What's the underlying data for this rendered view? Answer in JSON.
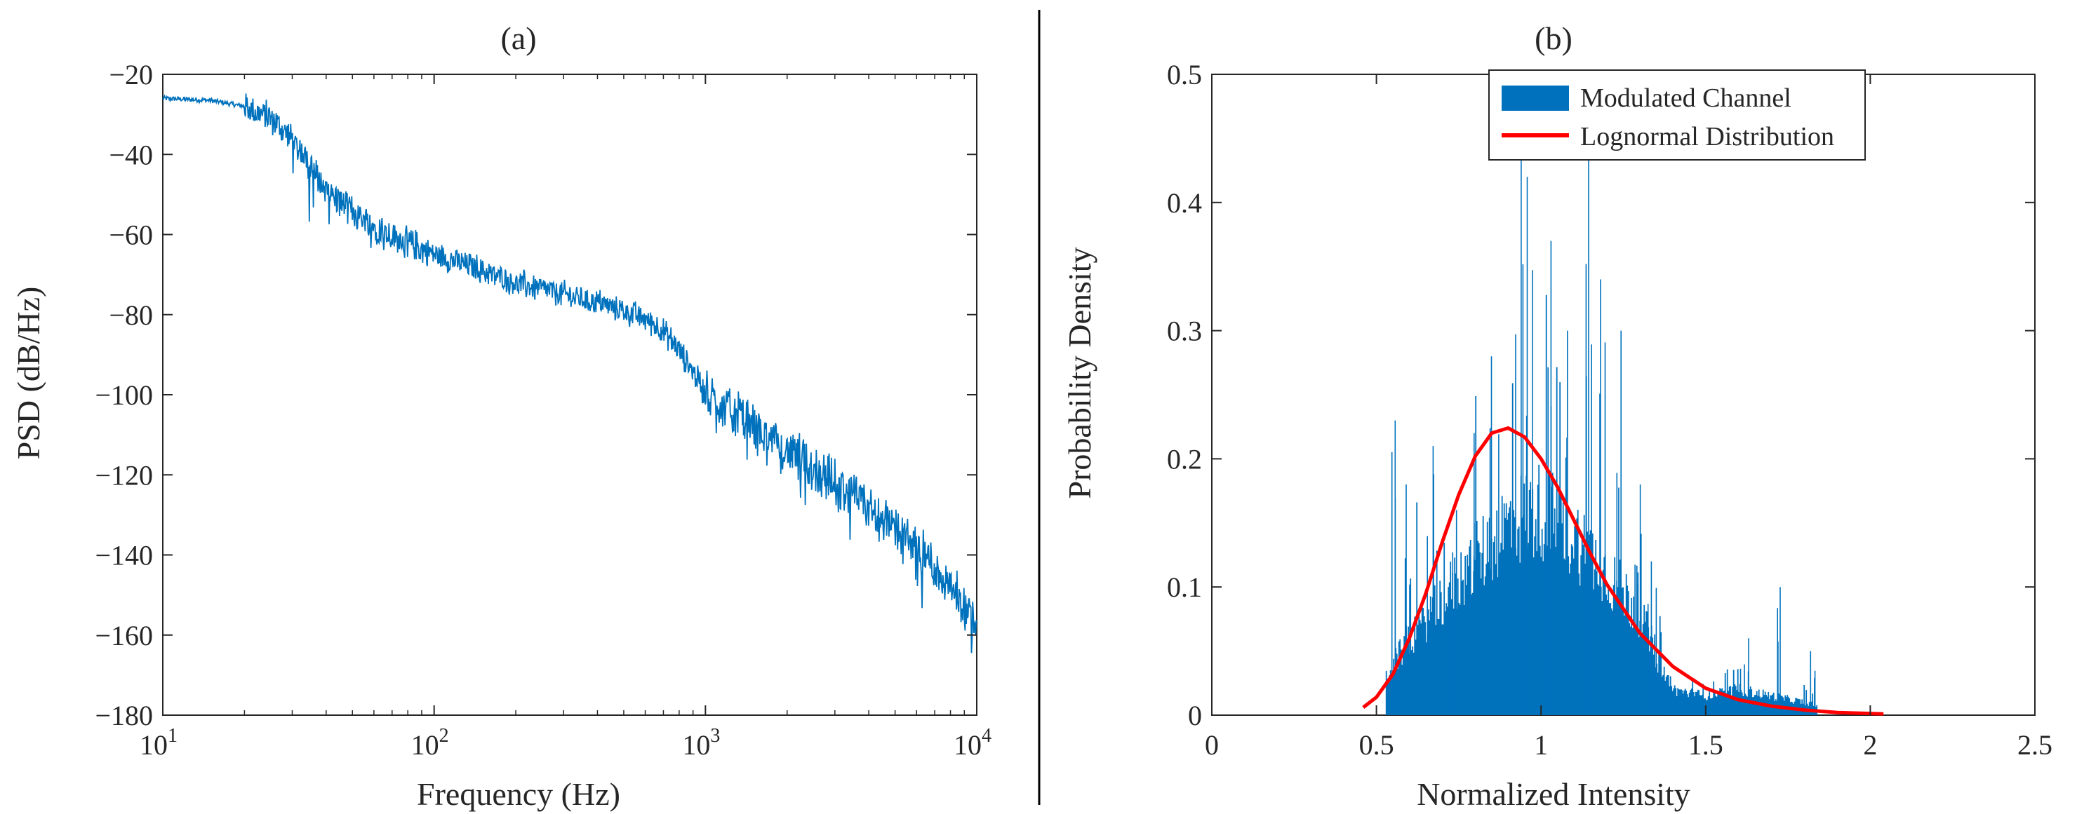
{
  "chart_data": [
    {
      "type": "line",
      "title": "(a)",
      "xlabel": "Frequency (Hz)",
      "ylabel": "PSD (dB/Hz)",
      "xscale": "log",
      "xlim": [
        10,
        10000
      ],
      "ylim": [
        -180,
        -20
      ],
      "xticks": [
        10,
        100,
        1000,
        10000
      ],
      "xtick_labels": [
        {
          "base": "10",
          "exp": "1"
        },
        {
          "base": "10",
          "exp": "2"
        },
        {
          "base": "10",
          "exp": "3"
        },
        {
          "base": "10",
          "exp": "4"
        }
      ],
      "yticks": [
        -180,
        -160,
        -140,
        -120,
        -100,
        -80,
        -60,
        -40,
        -20
      ],
      "ytick_labels": [
        "−180",
        "−160",
        "−140",
        "−120",
        "−100",
        "−80",
        "−60",
        "−40",
        "−20"
      ],
      "line_color": "#0072BD",
      "series": [
        {
          "name": "PSD",
          "x": [
            10,
            15,
            20,
            25,
            30,
            35,
            40,
            50,
            60,
            80,
            100,
            150,
            200,
            300,
            400,
            500,
            600,
            700,
            800,
            900,
            1000,
            1200,
            1500,
            2000,
            3000,
            5000,
            7000,
            10000
          ],
          "y": [
            -26,
            -26.5,
            -28,
            -31,
            -36,
            -43,
            -49,
            -54,
            -58,
            -62,
            -65,
            -69,
            -72,
            -75,
            -77,
            -79,
            -81,
            -84,
            -89,
            -94,
            -100,
            -103,
            -108,
            -114,
            -122,
            -133,
            -143,
            -157
          ]
        }
      ]
    },
    {
      "type": "bar",
      "title": "(b)",
      "xlabel": "Normalized Intensity",
      "ylabel": "Probability Density",
      "xlim": [
        0,
        2.5
      ],
      "ylim": [
        0,
        0.5
      ],
      "xticks": [
        0,
        0.5,
        1,
        1.5,
        2,
        2.5
      ],
      "xtick_labels": [
        "0",
        "0.5",
        "1",
        "1.5",
        "2",
        "2.5"
      ],
      "yticks": [
        0,
        0.1,
        0.2,
        0.3,
        0.4,
        0.5
      ],
      "ytick_labels": [
        "0",
        "0.1",
        "0.2",
        "0.3",
        "0.4",
        "0.5"
      ],
      "legend": {
        "position": "top-right",
        "entries": [
          "Modulated Channel",
          "Lognormal Distribution"
        ]
      },
      "series": [
        {
          "name": "Modulated Channel",
          "kind": "histogram",
          "color": "#0072BD",
          "x": [
            0.53,
            0.6,
            0.7,
            0.8,
            0.9,
            1.0,
            1.1,
            1.2,
            1.3,
            1.36,
            1.4,
            1.5,
            1.6,
            1.7,
            1.8,
            1.84
          ],
          "density": [
            0.03,
            0.06,
            0.09,
            0.12,
            0.15,
            0.16,
            0.14,
            0.11,
            0.08,
            0.04,
            0.02,
            0.015,
            0.02,
            0.015,
            0.01,
            0.008
          ],
          "peaks_x": [
            0.55,
            0.6,
            0.66,
            0.73,
            0.8,
            0.86,
            0.93,
            0.97,
            1.03,
            1.08,
            1.14,
            1.19,
            1.24,
            1.3,
            1.34,
            1.62,
            1.72,
            1.83
          ],
          "peaks_y": [
            0.23,
            0.18,
            0.21,
            0.16,
            0.22,
            0.28,
            0.48,
            0.42,
            0.37,
            0.3,
            0.44,
            0.34,
            0.3,
            0.18,
            0.12,
            0.06,
            0.1,
            0.05
          ]
        },
        {
          "name": "Lognormal Distribution",
          "kind": "line",
          "color": "#FF0000",
          "x": [
            0.46,
            0.5,
            0.55,
            0.6,
            0.65,
            0.7,
            0.75,
            0.8,
            0.85,
            0.9,
            0.95,
            1.0,
            1.05,
            1.1,
            1.15,
            1.2,
            1.3,
            1.4,
            1.5,
            1.6,
            1.7,
            1.8,
            1.9,
            2.04
          ],
          "y": [
            0.006,
            0.014,
            0.032,
            0.06,
            0.095,
            0.135,
            0.172,
            0.202,
            0.22,
            0.224,
            0.217,
            0.2,
            0.178,
            0.152,
            0.126,
            0.102,
            0.064,
            0.038,
            0.021,
            0.012,
            0.007,
            0.004,
            0.002,
            0.001
          ]
        }
      ]
    }
  ]
}
